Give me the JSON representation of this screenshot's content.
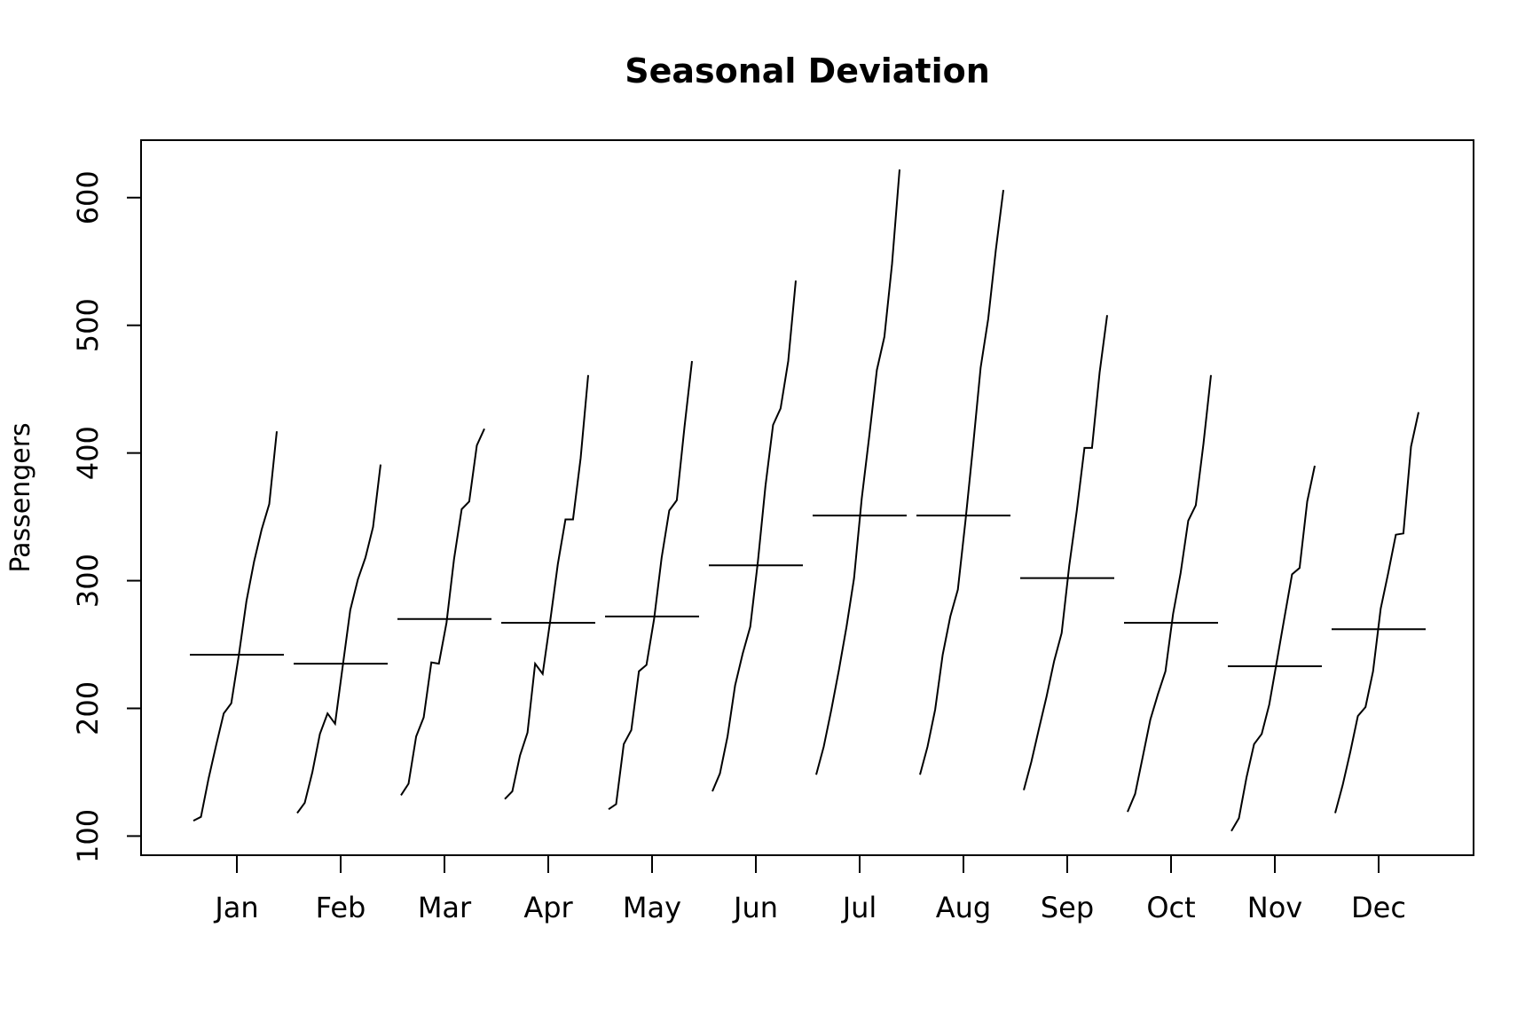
{
  "chart_data": {
    "type": "line",
    "subtype": "monthplot",
    "title": "Seasonal Deviation",
    "xlabel": "",
    "ylabel": "Passengers",
    "ylim": [
      85,
      645
    ],
    "yticks": [
      100,
      200,
      300,
      400,
      500,
      600
    ],
    "grid": false,
    "categories": [
      "Jan",
      "Feb",
      "Mar",
      "Apr",
      "May",
      "Jun",
      "Jul",
      "Aug",
      "Sep",
      "Oct",
      "Nov",
      "Dec"
    ],
    "series": [
      {
        "category": "Jan",
        "mean": 242,
        "values": [
          112,
          115,
          145,
          171,
          196,
          204,
          242,
          284,
          315,
          340,
          360,
          417
        ]
      },
      {
        "category": "Feb",
        "mean": 235,
        "values": [
          118,
          126,
          150,
          180,
          196,
          188,
          233,
          277,
          301,
          318,
          342,
          391
        ]
      },
      {
        "category": "Mar",
        "mean": 270,
        "values": [
          132,
          141,
          178,
          193,
          236,
          235,
          267,
          317,
          356,
          362,
          406,
          419
        ]
      },
      {
        "category": "Apr",
        "mean": 267,
        "values": [
          129,
          135,
          163,
          181,
          235,
          227,
          269,
          313,
          348,
          348,
          396,
          461
        ]
      },
      {
        "category": "May",
        "mean": 272,
        "values": [
          121,
          125,
          172,
          183,
          229,
          234,
          270,
          318,
          355,
          363,
          420,
          472
        ]
      },
      {
        "category": "Jun",
        "mean": 312,
        "values": [
          135,
          149,
          178,
          218,
          243,
          264,
          315,
          374,
          422,
          435,
          472,
          535
        ]
      },
      {
        "category": "Jul",
        "mean": 351,
        "values": [
          148,
          170,
          199,
          230,
          264,
          302,
          364,
          413,
          465,
          491,
          548,
          622
        ]
      },
      {
        "category": "Aug",
        "mean": 351,
        "values": [
          148,
          170,
          199,
          242,
          272,
          293,
          347,
          405,
          467,
          505,
          559,
          606
        ]
      },
      {
        "category": "Sep",
        "mean": 302,
        "values": [
          136,
          158,
          184,
          209,
          237,
          259,
          312,
          355,
          404,
          404,
          463,
          508
        ]
      },
      {
        "category": "Oct",
        "mean": 267,
        "values": [
          119,
          133,
          162,
          191,
          211,
          229,
          274,
          306,
          347,
          359,
          407,
          461
        ]
      },
      {
        "category": "Nov",
        "mean": 233,
        "values": [
          104,
          114,
          146,
          172,
          180,
          203,
          237,
          271,
          305,
          310,
          362,
          390
        ]
      },
      {
        "category": "Dec",
        "mean": 262,
        "values": [
          118,
          140,
          166,
          194,
          201,
          229,
          278,
          306,
          336,
          337,
          405,
          432
        ]
      }
    ]
  }
}
